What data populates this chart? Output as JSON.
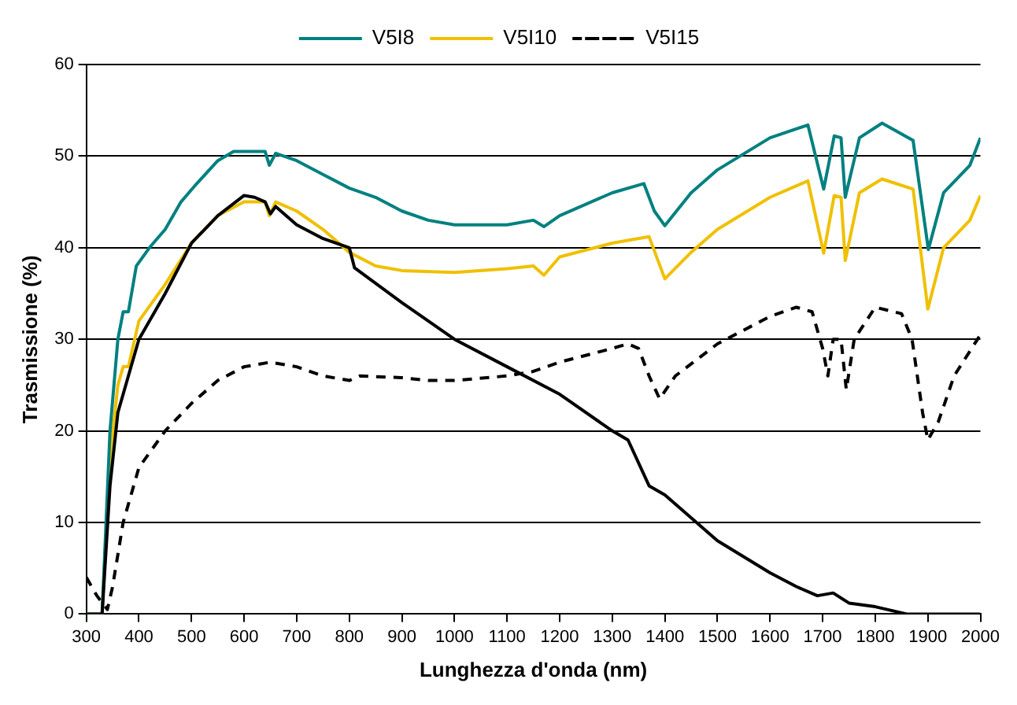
{
  "chart_data": {
    "type": "line",
    "xlabel": "Lunghezza d'onda (nm)",
    "ylabel": "Trasmissione (%)",
    "xlim": [
      300,
      2000
    ],
    "xticks": [
      300,
      400,
      500,
      600,
      700,
      800,
      900,
      1000,
      1100,
      1200,
      1300,
      1400,
      1500,
      1600,
      1700,
      1800,
      1900,
      2000
    ],
    "ylim": [
      0,
      60
    ],
    "yticks": [
      0,
      10,
      20,
      30,
      40,
      50,
      60
    ],
    "grid": "y",
    "legend": "top",
    "marker": "none",
    "series": [
      {
        "color": "#000000",
        "line_style": "solid",
        "x": [
          300,
          330,
          345,
          360,
          380,
          400,
          450,
          500,
          550,
          600,
          620,
          640,
          650,
          660,
          700,
          750,
          800,
          810,
          900,
          1000,
          1100,
          1200,
          1300,
          1330,
          1370,
          1400,
          1500,
          1600,
          1650,
          1690,
          1720,
          1750,
          1800,
          1860,
          2000
        ],
        "values": [
          0,
          0,
          14,
          22,
          26,
          30,
          35,
          40.5,
          43.5,
          45.7,
          45.5,
          45,
          43.7,
          44.5,
          42.5,
          41,
          40,
          37.8,
          34,
          30,
          27,
          24,
          20,
          19,
          14,
          13,
          8,
          4.5,
          3,
          2,
          2.3,
          1.2,
          0.8,
          0,
          0
        ]
      },
      {
        "name": "V5I8",
        "color": "#008080",
        "line_style": "solid",
        "x": [
          300,
          330,
          345,
          360,
          370,
          380,
          395,
          420,
          450,
          480,
          510,
          550,
          580,
          640,
          648,
          660,
          700,
          750,
          800,
          850,
          900,
          950,
          1000,
          1100,
          1150,
          1170,
          1200,
          1300,
          1360,
          1380,
          1400,
          1450,
          1500,
          1600,
          1672,
          1702,
          1722,
          1735,
          1743,
          1770,
          1813,
          1872,
          1901,
          1930,
          1980,
          2000
        ],
        "values": [
          0,
          0,
          20,
          30,
          33,
          33,
          38,
          40,
          42,
          45,
          47,
          49.5,
          50.5,
          50.5,
          49,
          50.3,
          49.5,
          48,
          46.5,
          45.5,
          44,
          43,
          42.5,
          42.5,
          43,
          42.3,
          43.5,
          46,
          47,
          44,
          42.4,
          46,
          48.5,
          52,
          53.4,
          46.4,
          52.2,
          52,
          45.5,
          52,
          53.6,
          51.7,
          39.8,
          46,
          49,
          52
        ]
      },
      {
        "name": "V5I10",
        "color": "#f0c000",
        "line_style": "solid",
        "x": [
          300,
          330,
          345,
          360,
          370,
          380,
          400,
          450,
          500,
          550,
          600,
          640,
          648,
          660,
          700,
          750,
          800,
          850,
          900,
          1000,
          1100,
          1150,
          1170,
          1200,
          1300,
          1370,
          1400,
          1450,
          1500,
          1600,
          1672,
          1702,
          1722,
          1735,
          1743,
          1770,
          1813,
          1872,
          1900,
          1930,
          1980,
          2000
        ],
        "values": [
          0,
          0,
          17,
          25,
          27,
          27,
          32,
          36,
          40.5,
          43.5,
          45,
          45,
          43.5,
          45,
          44,
          42,
          39.5,
          38,
          37.5,
          37.3,
          37.7,
          38,
          37,
          39,
          40.5,
          41.2,
          36.6,
          39.5,
          42,
          45.5,
          47.3,
          39.4,
          45.7,
          45.5,
          38.6,
          46,
          47.5,
          46.4,
          33.3,
          40,
          43,
          45.7
        ]
      },
      {
        "name": "V5I15",
        "color": "#000000",
        "line_style": "dashed",
        "x": [
          300,
          320,
          340,
          350,
          370,
          400,
          450,
          500,
          550,
          600,
          650,
          700,
          750,
          800,
          820,
          900,
          950,
          1000,
          1100,
          1150,
          1200,
          1300,
          1330,
          1350,
          1370,
          1390,
          1420,
          1500,
          1600,
          1650,
          1680,
          1700,
          1710,
          1720,
          1735,
          1745,
          1760,
          1800,
          1850,
          1870,
          1890,
          1900,
          1920,
          1950,
          2000
        ],
        "values": [
          4,
          2,
          0.5,
          3,
          10,
          16,
          20,
          23,
          25.5,
          27,
          27.5,
          27,
          26,
          25.5,
          26,
          25.8,
          25.5,
          25.5,
          26,
          26.5,
          27.5,
          29,
          29.5,
          29,
          26,
          23.5,
          26,
          29.5,
          32.5,
          33.5,
          33,
          29,
          26,
          30,
          30,
          24.5,
          30,
          33.5,
          32.8,
          30,
          22,
          19,
          21,
          26,
          30.5
        ]
      }
    ]
  }
}
